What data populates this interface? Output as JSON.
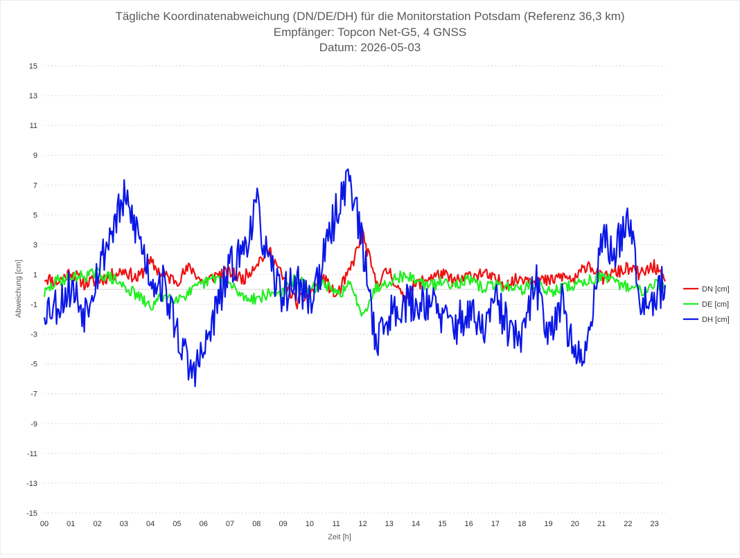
{
  "chart_data": {
    "type": "line",
    "title": "Tägliche Koordinatenabweichung (DN/DE/DH) für die Monitorstation Potsdam (Referenz 36,3 km)",
    "subtitle": "Empfänger: Topcon Net-G5, 4 GNSS",
    "date_line": "Datum: 2026-05-03",
    "xlabel": "Zeit [h]",
    "ylabel": "Abweichung [cm]",
    "xlim": [
      0,
      23.4
    ],
    "ylim": [
      -15,
      15
    ],
    "x_ticks": [
      "00",
      "01",
      "02",
      "03",
      "04",
      "05",
      "06",
      "07",
      "08",
      "09",
      "10",
      "11",
      "12",
      "13",
      "14",
      "15",
      "16",
      "17",
      "18",
      "19",
      "20",
      "21",
      "22",
      "23"
    ],
    "y_ticks": [
      "15",
      "13",
      "11",
      "9",
      "7",
      "5",
      "3",
      "1",
      "-1",
      "-3",
      "-5",
      "-7",
      "-9",
      "-11",
      "-13",
      "-15"
    ],
    "grid": true,
    "legend_position": "right",
    "x": [
      0.0,
      0.5,
      1.0,
      1.5,
      2.0,
      2.5,
      3.0,
      3.5,
      4.0,
      4.5,
      5.0,
      5.5,
      6.0,
      6.5,
      7.0,
      7.5,
      8.0,
      8.5,
      9.0,
      9.5,
      10.0,
      10.5,
      11.0,
      11.5,
      12.0,
      12.5,
      13.0,
      13.5,
      14.0,
      14.5,
      15.0,
      15.5,
      16.0,
      16.5,
      17.0,
      17.5,
      18.0,
      18.5,
      19.0,
      19.5,
      20.0,
      20.5,
      21.0,
      21.5,
      22.0,
      22.5,
      23.0,
      23.4
    ],
    "series": [
      {
        "name": "DN [cm]",
        "color": "#ee1111",
        "values": [
          0.8,
          0.5,
          1.2,
          0.4,
          0.6,
          0.9,
          1.3,
          0.7,
          1.8,
          0.9,
          0.6,
          1.5,
          0.4,
          1.0,
          1.1,
          0.7,
          1.8,
          2.6,
          0.7,
          -0.9,
          -0.3,
          0.8,
          -0.5,
          1.2,
          3.7,
          0.4,
          1.3,
          -0.6,
          0.3,
          0.8,
          1.0,
          0.5,
          0.9,
          1.1,
          0.6,
          0.4,
          0.8,
          0.7,
          0.5,
          0.9,
          0.6,
          1.8,
          0.7,
          1.1,
          1.4,
          1.0,
          1.6,
          0.3
        ]
      },
      {
        "name": "DE [cm]",
        "color": "#22ee22",
        "values": [
          -0.3,
          0.6,
          0.8,
          0.9,
          1.1,
          0.8,
          0.2,
          -0.4,
          -1.2,
          -0.4,
          -0.6,
          -0.2,
          0.4,
          0.8,
          0.3,
          -0.5,
          -0.6,
          -0.3,
          -0.2,
          0.8,
          -0.1,
          0.5,
          -0.4,
          0.3,
          -1.6,
          0.1,
          0.6,
          0.9,
          0.7,
          0.2,
          0.5,
          0.4,
          0.6,
          0.1,
          0.3,
          0.2,
          0.0,
          0.4,
          -0.2,
          0.1,
          0.3,
          0.6,
          0.9,
          0.4,
          0.2,
          -0.1,
          0.5,
          0.0
        ]
      },
      {
        "name": "DH [cm]",
        "color": "#0a17e6",
        "values": [
          -1.2,
          -1.0,
          0.2,
          -1.5,
          1.2,
          3.8,
          6.0,
          4.0,
          0.8,
          0.3,
          -2.8,
          -5.6,
          -4.4,
          -1.2,
          1.4,
          2.6,
          5.6,
          1.2,
          -0.3,
          0.5,
          -0.8,
          1.8,
          5.2,
          7.8,
          2.8,
          -3.4,
          -1.8,
          -0.8,
          -1.1,
          -0.6,
          -2.0,
          -2.4,
          -1.6,
          -2.8,
          -0.8,
          -2.6,
          -3.6,
          0.6,
          -2.8,
          -0.6,
          -5.0,
          -3.4,
          3.6,
          2.2,
          5.4,
          -0.6,
          -0.4,
          0.4
        ]
      }
    ]
  }
}
